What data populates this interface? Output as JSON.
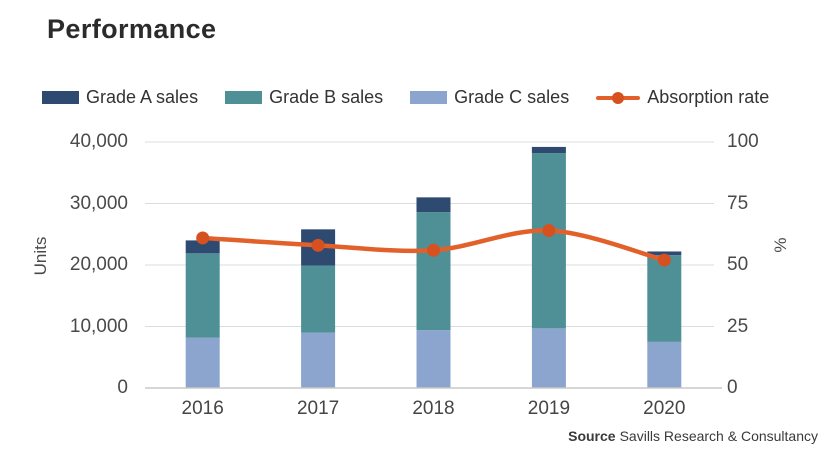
{
  "title": "Performance",
  "source": {
    "prefix": "Source",
    "text": "Savills Research & Consultancy"
  },
  "colors": {
    "grade_a": "#2F4A71",
    "grade_b": "#4F9097",
    "grade_c": "#8CA5CE",
    "absorption_line": "#E2612B",
    "absorption_marker": "#D6511F",
    "gridline": "#dcdcdc",
    "axis_line": "#c8c8c8"
  },
  "chart_data": {
    "type": "bar",
    "subtype": "stacked-bar-with-line",
    "title": "Performance",
    "categories": [
      "2016",
      "2017",
      "2018",
      "2019",
      "2020"
    ],
    "series": [
      {
        "name": "Grade A sales",
        "kind": "bar",
        "color": "#2F4A71",
        "axis": "left",
        "values": [
          2100,
          5900,
          2400,
          1000,
          600
        ]
      },
      {
        "name": "Grade B sales",
        "kind": "bar",
        "color": "#4F9097",
        "axis": "left",
        "values": [
          13700,
          10900,
          19200,
          28500,
          14100
        ]
      },
      {
        "name": "Grade C sales",
        "kind": "bar",
        "color": "#8CA5CE",
        "axis": "left",
        "values": [
          8200,
          9000,
          9400,
          9700,
          7500
        ]
      },
      {
        "name": "Absorption rate",
        "kind": "line",
        "color": "#E2612B",
        "axis": "right",
        "values": [
          61,
          58,
          56,
          64,
          52
        ]
      }
    ],
    "stack_bottom_to_top": [
      "Grade C sales",
      "Grade B sales",
      "Grade A sales"
    ],
    "left_axis": {
      "label": "Units",
      "min": 0,
      "max": 40000,
      "ticks": [
        0,
        10000,
        20000,
        30000,
        40000
      ],
      "tick_labels": [
        "0",
        "10,000",
        "20,000",
        "30,000",
        "40,000"
      ]
    },
    "right_axis": {
      "label": "%",
      "min": 0,
      "max": 100,
      "ticks": [
        0,
        25,
        50,
        75,
        100
      ],
      "tick_labels": [
        "0",
        "25",
        "50",
        "75",
        "100"
      ]
    },
    "grid": "horizontal",
    "legend_position": "top"
  }
}
